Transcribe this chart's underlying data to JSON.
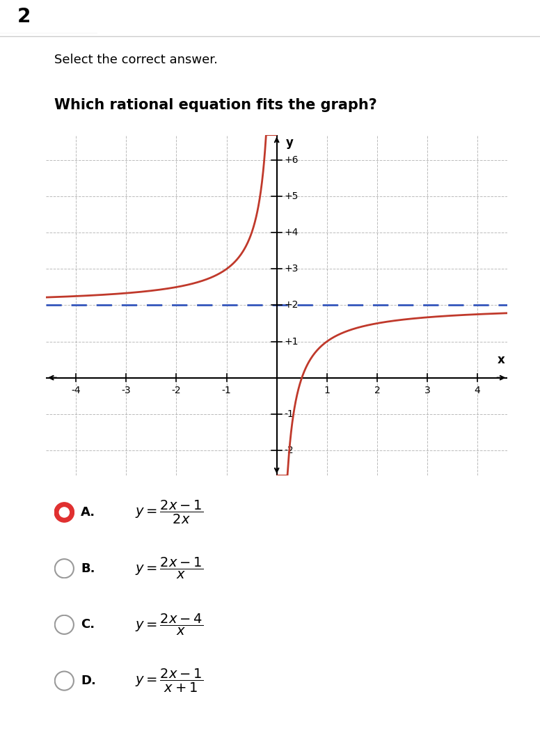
{
  "title_number": "2",
  "subtitle": "Select the correct answer.",
  "question": "Which rational equation fits the graph?",
  "bg_color": "#ffffff",
  "header_bg": "#f0f0f0",
  "graph_bg": "#ececec",
  "grid_color": "#aaaaaa",
  "curve_color": "#c0392b",
  "asymptote_color": "#3355bb",
  "xlim": [
    -4.6,
    4.6
  ],
  "ylim": [
    -2.7,
    6.7
  ],
  "xticks": [
    -4,
    -3,
    -2,
    -1,
    1,
    2,
    3,
    4
  ],
  "yticks": [
    -2,
    -1,
    1,
    2,
    3,
    4,
    5,
    6
  ],
  "horizontal_asymptote": 2,
  "vertical_asymptote": 0,
  "choices": [
    {
      "label": "A.",
      "eq": "y = \\dfrac{2x - 1}{2x}",
      "selected": true
    },
    {
      "label": "B.",
      "eq": "y = \\dfrac{2x - 1}{x}",
      "selected": false
    },
    {
      "label": "C.",
      "eq": "y = \\dfrac{2x - 4}{x}",
      "selected": false
    },
    {
      "label": "D.",
      "eq": "y = \\dfrac{2x - 1}{x + 1}",
      "selected": false
    }
  ]
}
